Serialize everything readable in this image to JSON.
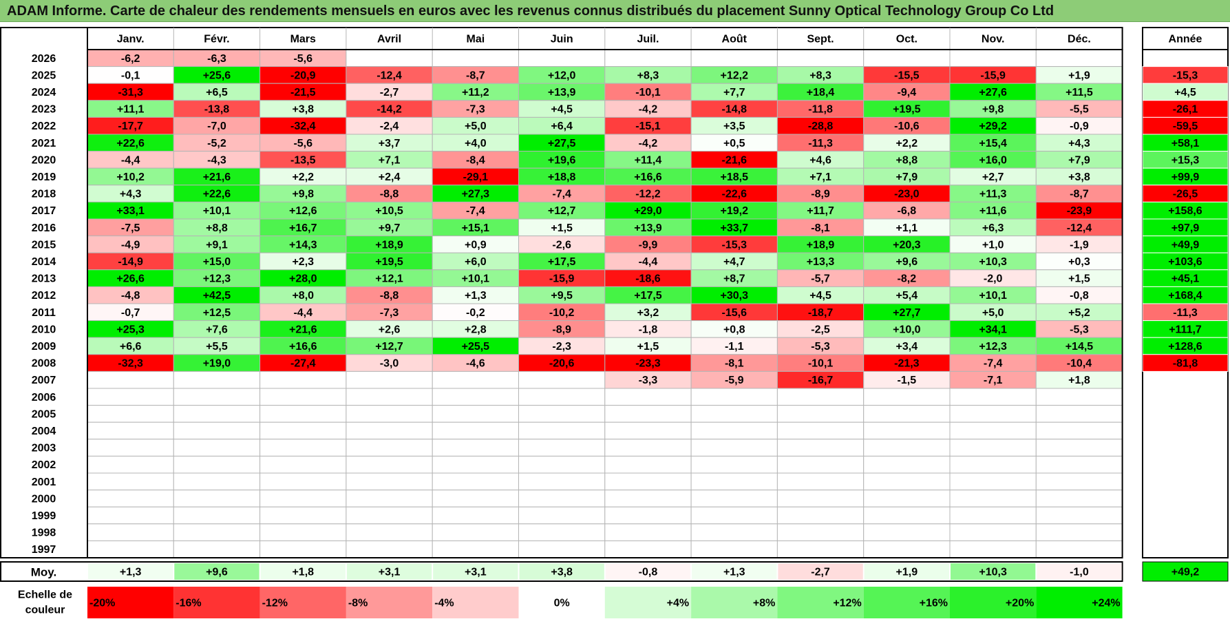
{
  "title": "ADAM Informe. Carte de chaleur des rendements mensuels en euros avec les revenus connus distribués du placement Sunny Optical Technology Group Co Ltd",
  "chart_data": {
    "type": "heatmap",
    "title": "ADAM Informe. Carte de chaleur des rendements mensuels en euros avec les revenus connus distribués du placement Sunny Optical Technology Group Co Ltd",
    "months": [
      "Janv.",
      "Févr.",
      "Mars",
      "Avril",
      "Mai",
      "Juin",
      "Juil.",
      "Août",
      "Sept.",
      "Oct.",
      "Nov.",
      "Déc."
    ],
    "year_label": "Année",
    "avg_label": "Moy.",
    "scale_label": "Echelle de couleur",
    "rows": [
      {
        "year": "2026",
        "values": [
          -6.2,
          -6.3,
          -5.6,
          null,
          null,
          null,
          null,
          null,
          null,
          null,
          null,
          null
        ],
        "annual": null
      },
      {
        "year": "2025",
        "values": [
          -0.1,
          25.6,
          -20.9,
          -12.4,
          -8.7,
          12.0,
          8.3,
          12.2,
          8.3,
          -15.5,
          -15.9,
          1.9
        ],
        "annual": -15.3
      },
      {
        "year": "2024",
        "values": [
          -31.3,
          6.5,
          -21.5,
          -2.7,
          11.2,
          13.9,
          -10.1,
          7.7,
          18.4,
          -9.4,
          27.6,
          11.5
        ],
        "annual": 4.5
      },
      {
        "year": "2023",
        "values": [
          11.1,
          -13.8,
          3.8,
          -14.2,
          -7.3,
          4.5,
          -4.2,
          -14.8,
          -11.8,
          19.5,
          9.8,
          -5.5
        ],
        "annual": -26.1
      },
      {
        "year": "2022",
        "values": [
          -17.7,
          -7.0,
          -32.4,
          -2.4,
          5.0,
          6.4,
          -15.1,
          3.5,
          -28.8,
          -10.6,
          29.2,
          -0.9
        ],
        "annual": -59.5
      },
      {
        "year": "2021",
        "values": [
          22.6,
          -5.2,
          -5.6,
          3.7,
          4.0,
          27.5,
          -4.2,
          0.5,
          -11.3,
          2.2,
          15.4,
          4.3
        ],
        "annual": 58.1
      },
      {
        "year": "2020",
        "values": [
          -4.4,
          -4.3,
          -13.5,
          7.1,
          -8.4,
          19.6,
          11.4,
          -21.6,
          4.6,
          8.8,
          16.0,
          7.9
        ],
        "annual": 15.3
      },
      {
        "year": "2019",
        "values": [
          10.2,
          21.6,
          2.2,
          2.4,
          -29.1,
          18.8,
          16.6,
          18.5,
          7.1,
          7.9,
          2.7,
          3.8
        ],
        "annual": 99.9
      },
      {
        "year": "2018",
        "values": [
          4.3,
          22.6,
          9.8,
          -8.8,
          27.3,
          -7.4,
          -12.2,
          -22.6,
          -8.9,
          -23.0,
          11.3,
          -8.7
        ],
        "annual": -26.5
      },
      {
        "year": "2017",
        "values": [
          33.1,
          10.1,
          12.6,
          10.5,
          -7.4,
          12.7,
          29.0,
          19.2,
          11.7,
          -6.8,
          11.6,
          -23.9
        ],
        "annual": 158.6
      },
      {
        "year": "2016",
        "values": [
          -7.5,
          8.8,
          16.7,
          9.7,
          15.1,
          1.5,
          13.9,
          33.7,
          -8.1,
          1.1,
          6.3,
          -12.4
        ],
        "annual": 97.9
      },
      {
        "year": "2015",
        "values": [
          -4.9,
          9.1,
          14.3,
          18.9,
          0.9,
          -2.6,
          -9.9,
          -15.3,
          18.9,
          20.3,
          1.0,
          -1.9
        ],
        "annual": 49.9
      },
      {
        "year": "2014",
        "values": [
          -14.9,
          15.0,
          2.3,
          19.5,
          6.0,
          17.5,
          -4.4,
          4.7,
          13.3,
          9.6,
          10.3,
          0.3
        ],
        "annual": 103.6
      },
      {
        "year": "2013",
        "values": [
          26.6,
          12.3,
          28.0,
          12.1,
          10.1,
          -15.9,
          -18.6,
          8.7,
          -5.7,
          -8.2,
          -2.0,
          1.5
        ],
        "annual": 45.1
      },
      {
        "year": "2012",
        "values": [
          -4.8,
          42.5,
          8.0,
          -8.8,
          1.3,
          9.5,
          17.5,
          30.3,
          4.5,
          5.4,
          10.1,
          -0.8
        ],
        "annual": 168.4
      },
      {
        "year": "2011",
        "values": [
          -0.7,
          12.5,
          -4.4,
          -7.3,
          -0.2,
          -10.2,
          3.2,
          -15.6,
          -18.7,
          27.7,
          5.0,
          5.2
        ],
        "annual": -11.3
      },
      {
        "year": "2010",
        "values": [
          25.3,
          7.6,
          21.6,
          2.6,
          2.8,
          -8.9,
          -1.8,
          0.8,
          -2.5,
          10.0,
          34.1,
          -5.3
        ],
        "annual": 111.7
      },
      {
        "year": "2009",
        "values": [
          6.6,
          5.5,
          16.6,
          12.7,
          25.5,
          -2.3,
          1.5,
          -1.1,
          -5.3,
          3.4,
          12.3,
          14.5
        ],
        "annual": 128.6
      },
      {
        "year": "2008",
        "values": [
          -32.3,
          19.0,
          -27.4,
          -3.0,
          -4.6,
          -20.6,
          -23.3,
          -8.1,
          -10.1,
          -21.3,
          -7.4,
          -10.4
        ],
        "annual": -81.8
      },
      {
        "year": "2007",
        "values": [
          null,
          null,
          null,
          null,
          null,
          null,
          -3.3,
          -5.9,
          -16.7,
          -1.5,
          -7.1,
          1.8
        ],
        "annual": null
      },
      {
        "year": "2006",
        "values": [
          null,
          null,
          null,
          null,
          null,
          null,
          null,
          null,
          null,
          null,
          null,
          null
        ],
        "annual": null
      },
      {
        "year": "2005",
        "values": [
          null,
          null,
          null,
          null,
          null,
          null,
          null,
          null,
          null,
          null,
          null,
          null
        ],
        "annual": null
      },
      {
        "year": "2004",
        "values": [
          null,
          null,
          null,
          null,
          null,
          null,
          null,
          null,
          null,
          null,
          null,
          null
        ],
        "annual": null
      },
      {
        "year": "2003",
        "values": [
          null,
          null,
          null,
          null,
          null,
          null,
          null,
          null,
          null,
          null,
          null,
          null
        ],
        "annual": null
      },
      {
        "year": "2002",
        "values": [
          null,
          null,
          null,
          null,
          null,
          null,
          null,
          null,
          null,
          null,
          null,
          null
        ],
        "annual": null
      },
      {
        "year": "2001",
        "values": [
          null,
          null,
          null,
          null,
          null,
          null,
          null,
          null,
          null,
          null,
          null,
          null
        ],
        "annual": null
      },
      {
        "year": "2000",
        "values": [
          null,
          null,
          null,
          null,
          null,
          null,
          null,
          null,
          null,
          null,
          null,
          null
        ],
        "annual": null
      },
      {
        "year": "1999",
        "values": [
          null,
          null,
          null,
          null,
          null,
          null,
          null,
          null,
          null,
          null,
          null,
          null
        ],
        "annual": null
      },
      {
        "year": "1998",
        "values": [
          null,
          null,
          null,
          null,
          null,
          null,
          null,
          null,
          null,
          null,
          null,
          null
        ],
        "annual": null
      },
      {
        "year": "1997",
        "values": [
          null,
          null,
          null,
          null,
          null,
          null,
          null,
          null,
          null,
          null,
          null,
          null
        ],
        "annual": null
      }
    ],
    "averages": [
      1.3,
      9.6,
      1.8,
      3.1,
      3.1,
      3.8,
      -0.8,
      1.3,
      -2.7,
      1.9,
      10.3,
      -1.0
    ],
    "annual_average": 49.2,
    "scale": [
      -20,
      -16,
      -12,
      -8,
      -4,
      0,
      4,
      8,
      12,
      16,
      20,
      24
    ],
    "scale_labels": [
      "-20%",
      "-16%",
      "-12%",
      "-8%",
      "-4%",
      "0%",
      "+4%",
      "+8%",
      "+12%",
      "+16%",
      "+20%",
      "+24%"
    ],
    "colors": {
      "negative": "#ff0000",
      "zero": "#ffffff",
      "positive": "#00ee00",
      "title_bar": "#8dcc77"
    }
  }
}
